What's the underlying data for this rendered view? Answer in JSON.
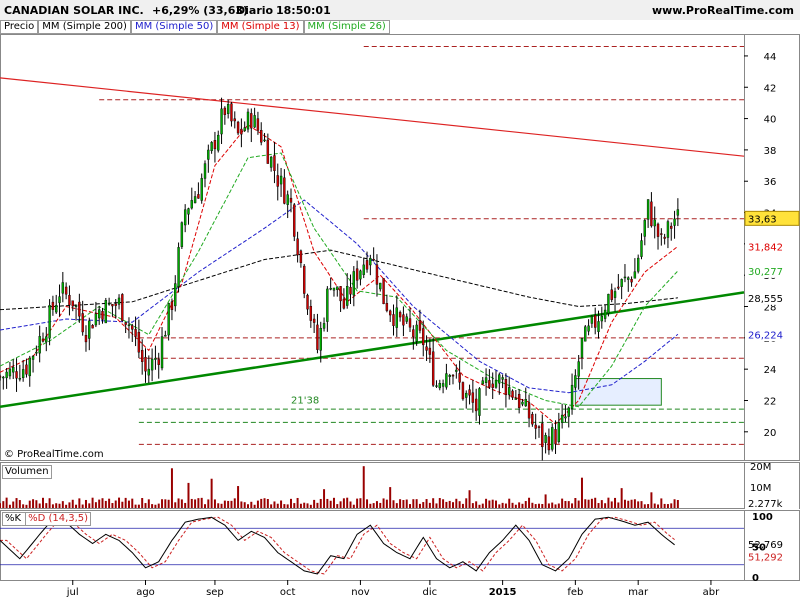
{
  "header": {
    "title": "CANADIAN SOLAR INC.",
    "change": "+6,29% (33,63)",
    "period": "Diario",
    "time": "18:50:01",
    "site": "www.ProRealTime.com"
  },
  "legend": {
    "price": "Precio",
    "ma200": "MM (Simple 200)",
    "ma50": "MM (Simple 50)",
    "ma13": "MM (Simple 13)",
    "ma26": "MM (Simple 26)"
  },
  "copyright": "© ProRealTime.com",
  "colors": {
    "up": "#00aa00",
    "down": "#cc0000",
    "ma200": "#000000",
    "ma50": "#2020cc",
    "ma13": "#dd0000",
    "ma26": "#22aa22",
    "trend_support": "#008800",
    "trend_resist": "#dd2222",
    "volume": "#990000",
    "k_line": "#000000",
    "d_line": "#cc2222",
    "box_fill": "#e6eeff"
  },
  "chart_data": [
    {
      "type": "candlestick",
      "ylim": [
        18.2,
        45.4
      ],
      "yticks": [
        20,
        22,
        24,
        26,
        28,
        30,
        32,
        34,
        36,
        38,
        40,
        42,
        44
      ],
      "x_months": [
        "jul",
        "ago",
        "sep",
        "oct",
        "nov",
        "dic",
        "2015",
        "feb",
        "mar",
        "abr"
      ],
      "x_month_days": [
        22,
        44,
        65,
        87,
        109,
        130,
        152,
        174,
        193,
        215
      ],
      "n_days": 205,
      "closes": [
        [
          0,
          23.5
        ],
        [
          8,
          24.2
        ],
        [
          14,
          26.8
        ],
        [
          18,
          29.0
        ],
        [
          22,
          28.4
        ],
        [
          26,
          26.5
        ],
        [
          30,
          27.8
        ],
        [
          36,
          28.2
        ],
        [
          40,
          26.5
        ],
        [
          44,
          23.8
        ],
        [
          48,
          25.0
        ],
        [
          52,
          28.3
        ],
        [
          56,
          34.2
        ],
        [
          60,
          35.5
        ],
        [
          64,
          38.0
        ],
        [
          68,
          40.6
        ],
        [
          72,
          38.9
        ],
        [
          76,
          40.1
        ],
        [
          80,
          38.5
        ],
        [
          84,
          36.2
        ],
        [
          88,
          34.5
        ],
        [
          92,
          29.5
        ],
        [
          96,
          25.3
        ],
        [
          100,
          29.8
        ],
        [
          104,
          28.0
        ],
        [
          108,
          30.2
        ],
        [
          112,
          31.5
        ],
        [
          116,
          28.5
        ],
        [
          120,
          27.2
        ],
        [
          124,
          26.4
        ],
        [
          128,
          25.8
        ],
        [
          132,
          23.0
        ],
        [
          136,
          24.3
        ],
        [
          140,
          22.5
        ],
        [
          144,
          21.5
        ],
        [
          148,
          23.5
        ],
        [
          152,
          23.2
        ],
        [
          156,
          22.3
        ],
        [
          160,
          21.0
        ],
        [
          164,
          19.4
        ],
        [
          168,
          19.8
        ],
        [
          172,
          21.2
        ],
        [
          176,
          25.6
        ],
        [
          180,
          27.0
        ],
        [
          184,
          28.6
        ],
        [
          188,
          29.4
        ],
        [
          192,
          30.2
        ],
        [
          196,
          34.3
        ],
        [
          200,
          32.0
        ],
        [
          204,
          33.63
        ]
      ],
      "ma200": [
        [
          0,
          27.8
        ],
        [
          40,
          28.3
        ],
        [
          80,
          31.0
        ],
        [
          100,
          31.6
        ],
        [
          120,
          30.6
        ],
        [
          140,
          29.6
        ],
        [
          160,
          28.6
        ],
        [
          175,
          28.0
        ],
        [
          190,
          28.2
        ],
        [
          205,
          28.555
        ]
      ],
      "ma50": [
        [
          0,
          26.5
        ],
        [
          20,
          27.2
        ],
        [
          40,
          27.0
        ],
        [
          60,
          30.2
        ],
        [
          80,
          33.0
        ],
        [
          92,
          34.8
        ],
        [
          108,
          32.0
        ],
        [
          125,
          28.0
        ],
        [
          145,
          24.5
        ],
        [
          160,
          22.8
        ],
        [
          172,
          22.5
        ],
        [
          185,
          23.0
        ],
        [
          195,
          24.5
        ],
        [
          205,
          26.224
        ]
      ],
      "ma13": [
        [
          0,
          23.8
        ],
        [
          10,
          24.8
        ],
        [
          20,
          28.0
        ],
        [
          35,
          27.3
        ],
        [
          45,
          25.2
        ],
        [
          55,
          29.5
        ],
        [
          65,
          37.0
        ],
        [
          75,
          39.6
        ],
        [
          85,
          38.2
        ],
        [
          95,
          31.5
        ],
        [
          105,
          28.3
        ],
        [
          115,
          30.0
        ],
        [
          125,
          27.7
        ],
        [
          140,
          23.6
        ],
        [
          150,
          22.6
        ],
        [
          160,
          21.9
        ],
        [
          168,
          20.5
        ],
        [
          175,
          22.0
        ],
        [
          185,
          27.0
        ],
        [
          195,
          30.2
        ],
        [
          205,
          31.842
        ]
      ],
      "ma26": [
        [
          0,
          24.2
        ],
        [
          15,
          25.8
        ],
        [
          30,
          28.0
        ],
        [
          45,
          26.2
        ],
        [
          60,
          31.5
        ],
        [
          75,
          37.5
        ],
        [
          85,
          37.8
        ],
        [
          95,
          33.0
        ],
        [
          108,
          29.0
        ],
        [
          120,
          28.6
        ],
        [
          135,
          25.2
        ],
        [
          150,
          23.3
        ],
        [
          165,
          22.0
        ],
        [
          175,
          21.6
        ],
        [
          185,
          24.2
        ],
        [
          195,
          28.0
        ],
        [
          205,
          30.277
        ]
      ],
      "trendlines": [
        {
          "color": "support",
          "from": [
            0,
            21.6
          ],
          "to": [
            225,
            28.9
          ]
        },
        {
          "color": "resist",
          "from": [
            0,
            42.6
          ],
          "to": [
            225,
            37.6
          ]
        }
      ],
      "h_levels": [
        44.6,
        41.2,
        33.6,
        26.0,
        24.7,
        21.45,
        20.6,
        19.2
      ],
      "h_level_colors": [
        "red",
        "red",
        "red",
        "red",
        "red",
        "green",
        "green",
        "red"
      ],
      "box": {
        "x0": 174,
        "x1": 200,
        "y0": 23.4,
        "y1": 21.7
      },
      "annotation": "21'38",
      "annotation_pos": [
        88,
        21.8
      ],
      "price_tags": [
        {
          "value": "33,63",
          "y": 33.63,
          "bg": "#ffe23a",
          "fg": "#000000"
        },
        {
          "value": "31,842",
          "y": 31.842,
          "bg": "#ffffff",
          "fg": "#dd0000"
        },
        {
          "value": "30,277",
          "y": 30.277,
          "bg": "#ffffff",
          "fg": "#22aa22"
        },
        {
          "value": "28,555",
          "y": 28.555,
          "bg": "#ffffff",
          "fg": "#000000"
        },
        {
          "value": "26,224",
          "y": 26.224,
          "bg": "#ffffff",
          "fg": "#2020cc"
        }
      ]
    },
    {
      "type": "bar",
      "label": "Volumen",
      "ylim": [
        0,
        22
      ],
      "yticks": [
        "20M",
        "10M"
      ],
      "ytick_values": [
        20,
        10
      ],
      "last_value": "2.277k",
      "spikes": [
        [
          52,
          19.0
        ],
        [
          57,
          12.0
        ],
        [
          64,
          14.0
        ],
        [
          72,
          10.5
        ],
        [
          98,
          9.0
        ],
        [
          110,
          20.0
        ],
        [
          118,
          10.0
        ],
        [
          142,
          8.5
        ],
        [
          165,
          6.5
        ],
        [
          176,
          14.5
        ],
        [
          188,
          9.5
        ],
        [
          197,
          7.5
        ]
      ]
    },
    {
      "type": "line",
      "label_k": "%K",
      "label_d": "%D (14,3,5)",
      "ylim": [
        -5,
        110
      ],
      "yticks": [
        100,
        50,
        0
      ],
      "levels": [
        80,
        20
      ],
      "k_points": [
        [
          0,
          60
        ],
        [
          6,
          30
        ],
        [
          12,
          70
        ],
        [
          16,
          95
        ],
        [
          20,
          90
        ],
        [
          24,
          70
        ],
        [
          28,
          55
        ],
        [
          32,
          70
        ],
        [
          36,
          60
        ],
        [
          40,
          40
        ],
        [
          44,
          15
        ],
        [
          48,
          25
        ],
        [
          52,
          60
        ],
        [
          56,
          90
        ],
        [
          60,
          95
        ],
        [
          64,
          98
        ],
        [
          68,
          85
        ],
        [
          72,
          60
        ],
        [
          76,
          75
        ],
        [
          80,
          65
        ],
        [
          84,
          40
        ],
        [
          88,
          25
        ],
        [
          92,
          10
        ],
        [
          96,
          5
        ],
        [
          100,
          35
        ],
        [
          104,
          30
        ],
        [
          108,
          70
        ],
        [
          112,
          85
        ],
        [
          116,
          55
        ],
        [
          120,
          40
        ],
        [
          124,
          30
        ],
        [
          128,
          65
        ],
        [
          132,
          30
        ],
        [
          136,
          15
        ],
        [
          140,
          25
        ],
        [
          144,
          10
        ],
        [
          148,
          40
        ],
        [
          152,
          60
        ],
        [
          156,
          85
        ],
        [
          160,
          60
        ],
        [
          164,
          20
        ],
        [
          168,
          10
        ],
        [
          172,
          30
        ],
        [
          176,
          70
        ],
        [
          180,
          95
        ],
        [
          184,
          98
        ],
        [
          188,
          92
        ],
        [
          192,
          85
        ],
        [
          196,
          90
        ],
        [
          200,
          70
        ],
        [
          204,
          52.769
        ]
      ],
      "last_k": "52,769",
      "last_d": "51,292"
    }
  ]
}
